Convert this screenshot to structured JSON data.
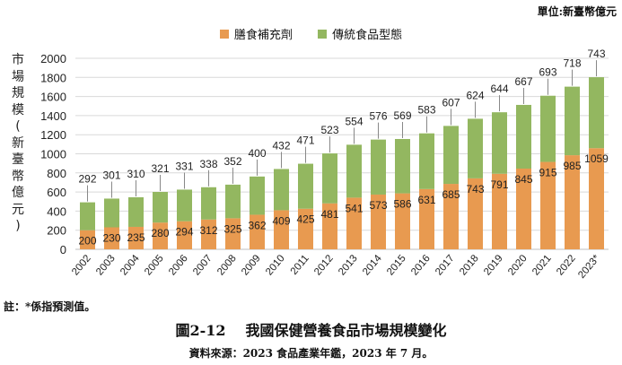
{
  "chart_data": {
    "type": "bar",
    "stacked": true,
    "unit_note": "單位:新臺幣億元",
    "ylabel": "市場規模(新臺幣億元)",
    "ylim": [
      0,
      2000
    ],
    "yticks": [
      0,
      200,
      400,
      600,
      800,
      1000,
      1200,
      1400,
      1600,
      1800,
      2000
    ],
    "grid": true,
    "legend_position": "top-center",
    "categories": [
      "2002",
      "2003",
      "2004",
      "2005",
      "2006",
      "2007",
      "2008",
      "2009",
      "2010",
      "2011",
      "2012",
      "2013",
      "2014",
      "2015",
      "2016",
      "2017",
      "2018",
      "2019",
      "2020",
      "2021",
      "2022",
      "2023*"
    ],
    "series": [
      {
        "name": "膳食補充劑",
        "color": "#e89a50",
        "values": [
          200,
          230,
          235,
          280,
          294,
          312,
          325,
          362,
          409,
          425,
          481,
          541,
          573,
          586,
          631,
          685,
          743,
          791,
          845,
          915,
          985,
          1059
        ]
      },
      {
        "name": "傳統食品型態",
        "color": "#93b760",
        "values": [
          292,
          301,
          310,
          321,
          331,
          338,
          352,
          400,
          432,
          471,
          523,
          554,
          576,
          569,
          583,
          607,
          624,
          644,
          667,
          693,
          718,
          743
        ]
      }
    ]
  },
  "note": "註：*係指預測值。",
  "figure_number": "圖2-12",
  "figure_title": "我國保健營養食品市場規模變化",
  "source": "資料來源：2023 食品產業年鑑，2023 年 7 月。"
}
